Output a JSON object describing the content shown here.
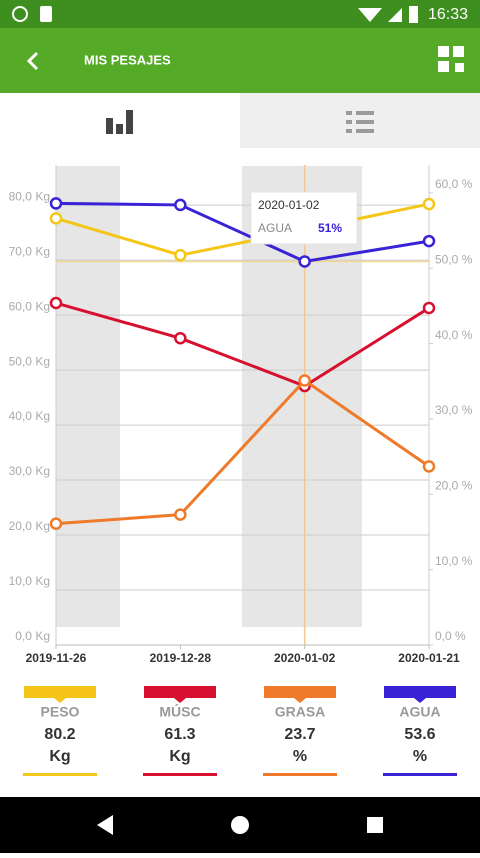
{
  "status_bar": {
    "time": "16:33"
  },
  "header": {
    "title": "MIS PESAJES"
  },
  "chart_data": {
    "type": "line",
    "categories": [
      "2019-11-26",
      "2019-12-28",
      "2020-01-02",
      "2020-01-21"
    ],
    "ylim": [
      0,
      87.3
    ],
    "yticks": [
      {
        "value": 0,
        "label": "0,0 Kg"
      },
      {
        "value": 10,
        "label": "10,0 Kg"
      },
      {
        "value": 20,
        "label": "20,0 Kg"
      },
      {
        "value": 30,
        "label": "30,0 Kg"
      },
      {
        "value": 40,
        "label": "40,0 Kg"
      },
      {
        "value": 50,
        "label": "50,0 Kg"
      },
      {
        "value": 60,
        "label": "60,0 Kg"
      },
      {
        "value": 70,
        "label": "70,0 Kg"
      },
      {
        "value": 80,
        "label": "80,0 Kg"
      }
    ],
    "y2lim": [
      0,
      63.7
    ],
    "y2ticks": [
      {
        "value": 0,
        "label": "0,0 %"
      },
      {
        "value": 10,
        "label": "10,0 %"
      },
      {
        "value": 20,
        "label": "20,0 %"
      },
      {
        "value": 30,
        "label": "30,0 %"
      },
      {
        "value": 40,
        "label": "40,0 %"
      },
      {
        "value": 50,
        "label": "50,0 %"
      },
      {
        "value": 60,
        "label": "60,0 %"
      }
    ],
    "grid": true,
    "series": [
      {
        "name": "PESO",
        "unit": "Kg",
        "color": "#f5c518",
        "values": [
          77.6,
          70.9,
          75.5,
          80.2
        ]
      },
      {
        "name": "MÚSC",
        "unit": "Kg",
        "color": "#d7102f",
        "values": [
          62.2,
          55.8,
          47.1,
          61.3
        ]
      },
      {
        "name": "GRASA",
        "unit": "%",
        "color": "#ee7a2a",
        "axis": "y2",
        "values": [
          16.1,
          17.3,
          35.1,
          23.7
        ]
      },
      {
        "name": "AGUA",
        "unit": "%",
        "color": "#3a22d6",
        "axis": "y2",
        "values": [
          58.6,
          58.4,
          50.9,
          53.6
        ]
      }
    ],
    "tooltip": {
      "date": "2020-01-02",
      "label": "AGUA",
      "value": "51%"
    }
  }
}
